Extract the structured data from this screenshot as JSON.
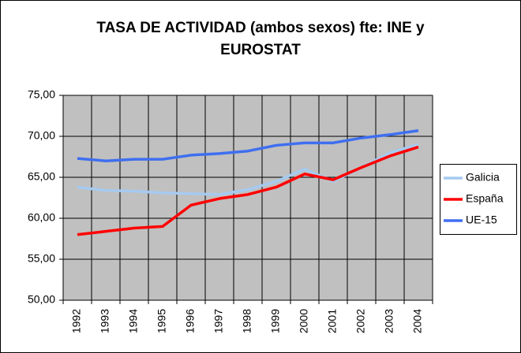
{
  "chart_data": {
    "type": "line",
    "title": [
      "TASA DE ACTIVIDAD (ambos sexos) fte: INE y",
      "EUROSTAT"
    ],
    "categories": [
      "1992",
      "1993",
      "1994",
      "1995",
      "1996",
      "1997",
      "1998",
      "1999",
      "2000",
      "2001",
      "2002",
      "2003",
      "2004"
    ],
    "series": [
      {
        "name": "Galicia",
        "color": "#a6caf0",
        "values": [
          63.8,
          63.4,
          63.3,
          63.1,
          63.0,
          62.9,
          63.5,
          64.5,
          66.0,
          64.5,
          66.2,
          68.0,
          69.0
        ]
      },
      {
        "name": "España",
        "color": "#ff0000",
        "values": [
          58.0,
          58.4,
          58.8,
          59.0,
          61.6,
          62.4,
          62.9,
          63.8,
          65.4,
          64.7,
          66.2,
          67.6,
          68.7
        ]
      },
      {
        "name": "UE-15",
        "color": "#3f6ff0",
        "values": [
          67.3,
          67.0,
          67.2,
          67.2,
          67.7,
          67.9,
          68.2,
          68.9,
          69.2,
          69.2,
          69.8,
          70.2,
          70.7
        ]
      }
    ],
    "ylim": [
      50,
      75
    ],
    "yticks": [
      {
        "value": 50,
        "label": "50,00"
      },
      {
        "value": 55,
        "label": "55,00"
      },
      {
        "value": 60,
        "label": "60,00"
      },
      {
        "value": 65,
        "label": "65,00"
      },
      {
        "value": 70,
        "label": "70,00"
      },
      {
        "value": 75,
        "label": "75,00"
      }
    ],
    "grid": true,
    "legend": "right"
  }
}
